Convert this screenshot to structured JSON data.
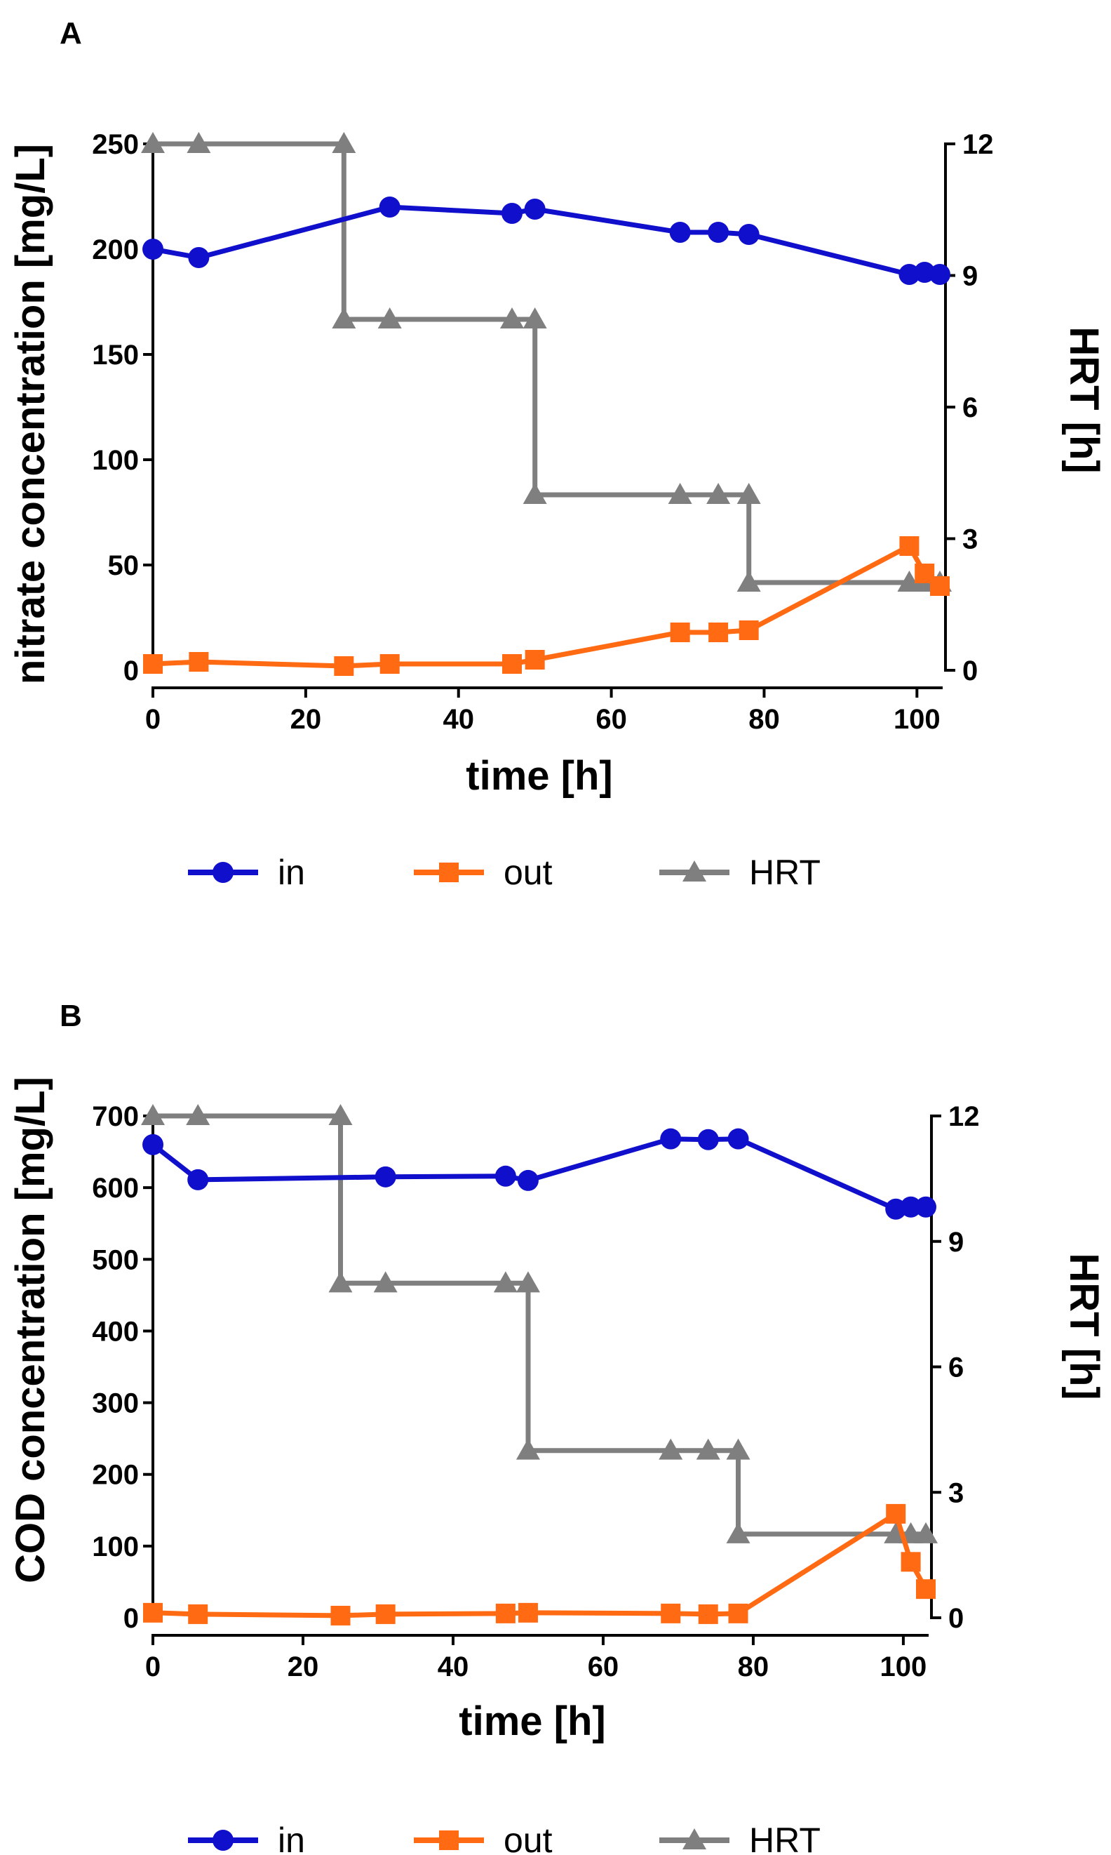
{
  "colors": {
    "in": "#1010cc",
    "out": "#ff6a13",
    "hrt": "#7f7f7f"
  },
  "legend": [
    {
      "key": "in",
      "label": "in",
      "marker": "circle"
    },
    {
      "key": "out",
      "label": "out",
      "marker": "square"
    },
    {
      "key": "hrt",
      "label": "HRT",
      "marker": "triangle"
    }
  ],
  "chart_data": [
    {
      "type": "line",
      "panel": "A",
      "xlabel": "time [h]",
      "ylabel": "nitrate concentration [mg/L]",
      "y2label": "HRT [h]",
      "xlim": [
        0,
        103
      ],
      "xticks": [
        0,
        20,
        40,
        60,
        80,
        100
      ],
      "ylim": [
        0,
        250
      ],
      "yticks": [
        0,
        50,
        100,
        150,
        200,
        250
      ],
      "y2lim": [
        0,
        12
      ],
      "y2ticks": [
        0,
        3,
        6,
        9,
        12
      ],
      "series": [
        {
          "name": "in",
          "axis": "left",
          "marker": "circle",
          "x": [
            0,
            6,
            31,
            47,
            50,
            69,
            74,
            78,
            99,
            101,
            103
          ],
          "y": [
            200,
            196,
            220,
            217,
            219,
            208,
            208,
            207,
            188,
            189,
            188
          ]
        },
        {
          "name": "out",
          "axis": "left",
          "marker": "square",
          "x": [
            0,
            6,
            25,
            31,
            47,
            50,
            69,
            74,
            78,
            99,
            101,
            103
          ],
          "y": [
            3,
            4,
            2,
            3,
            3,
            5,
            18,
            18,
            19,
            59,
            46,
            40
          ]
        },
        {
          "name": "HRT",
          "axis": "right",
          "marker": "triangle",
          "step": true,
          "x": [
            0,
            6,
            25,
            25,
            31,
            47,
            50,
            50,
            69,
            74,
            78,
            78,
            99,
            101,
            103
          ],
          "y": [
            12,
            12,
            12,
            8,
            8,
            8,
            8,
            4,
            4,
            4,
            4,
            2,
            2,
            2,
            2
          ]
        }
      ]
    },
    {
      "type": "line",
      "panel": "B",
      "xlabel": "time [h]",
      "ylabel": "COD concentration [mg/L]",
      "y2label": "HRT [h]",
      "xlim": [
        0,
        103
      ],
      "xticks": [
        0,
        20,
        40,
        60,
        80,
        100
      ],
      "ylim": [
        0,
        700
      ],
      "yticks": [
        0,
        100,
        200,
        300,
        400,
        500,
        600,
        700
      ],
      "y2lim": [
        0,
        12
      ],
      "y2ticks": [
        0,
        3,
        6,
        9,
        12
      ],
      "series": [
        {
          "name": "in",
          "axis": "left",
          "marker": "circle",
          "x": [
            0,
            6,
            31,
            47,
            50,
            69,
            74,
            78,
            99,
            101,
            103
          ],
          "y": [
            660,
            611,
            615,
            616,
            610,
            668,
            667,
            668,
            570,
            573,
            573
          ]
        },
        {
          "name": "out",
          "axis": "left",
          "marker": "square",
          "x": [
            0,
            6,
            25,
            31,
            47,
            50,
            69,
            74,
            78,
            99,
            101,
            103
          ],
          "y": [
            7,
            5,
            3,
            5,
            6,
            7,
            6,
            5,
            6,
            145,
            78,
            40
          ]
        },
        {
          "name": "HRT",
          "axis": "right",
          "marker": "triangle",
          "step": true,
          "x": [
            0,
            6,
            25,
            25,
            31,
            47,
            50,
            50,
            69,
            74,
            78,
            78,
            99,
            101,
            103
          ],
          "y": [
            12,
            12,
            12,
            8,
            8,
            8,
            8,
            4,
            4,
            4,
            4,
            2,
            2,
            2,
            2
          ]
        }
      ]
    }
  ]
}
